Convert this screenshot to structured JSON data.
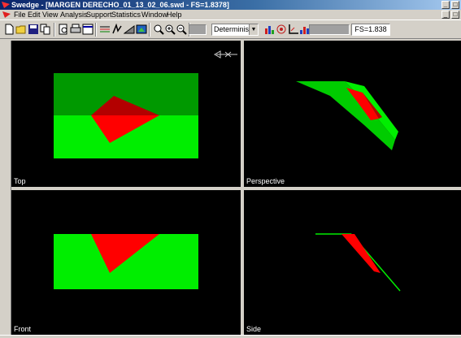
{
  "window": {
    "title": "Swedge - [MARGEN DERECHO_01_13_02_06.swd - FS=1.8378]",
    "controls": [
      "_",
      "□"
    ]
  },
  "menu": {
    "items": [
      "File",
      "Edit",
      "View",
      "Analysis",
      "Support",
      "Statistics",
      "Window",
      "Help"
    ],
    "mdi_controls": [
      "_",
      "□"
    ]
  },
  "toolbar": {
    "buttons": [
      "new-icon",
      "open-icon",
      "save-icon",
      "copy-icon",
      "print-preview-icon",
      "print-icon",
      "page-setup-icon",
      "input-data-icon",
      "joint-icon",
      "slope-icon",
      "view-icon",
      "zoom-all-icon",
      "zoom-in-icon",
      "zoom-out-icon",
      "measure-icon"
    ],
    "analysis_type": "Deterministic",
    "factor_of_safety": "FS=1.838"
  },
  "colors": {
    "slope_dark": "#009900",
    "slope_light": "#00ee00",
    "wedge": "#ff0000",
    "wedge_dark": "#b30000"
  },
  "viewports": {
    "top": {
      "label": "Top"
    },
    "perspective": {
      "label": "Perspective"
    },
    "front": {
      "label": "Front"
    },
    "side": {
      "label": "Side"
    }
  }
}
